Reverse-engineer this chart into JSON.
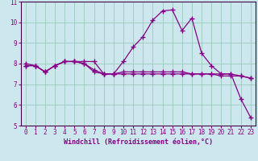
{
  "xlabel": "Windchill (Refroidissement éolien,°C)",
  "bg_color": "#cce8ee",
  "grid_color": "#99ccbb",
  "line_color": "#880088",
  "spine_color": "#440044",
  "x": [
    0,
    1,
    2,
    3,
    4,
    5,
    6,
    7,
    8,
    9,
    10,
    11,
    12,
    13,
    14,
    15,
    16,
    17,
    18,
    19,
    20,
    21,
    22,
    23
  ],
  "line1": [
    7.9,
    7.9,
    7.6,
    7.9,
    8.1,
    8.1,
    8.0,
    7.7,
    7.5,
    7.5,
    8.1,
    8.8,
    9.3,
    10.1,
    10.55,
    10.6,
    9.6,
    10.2,
    8.5,
    7.9,
    7.5,
    7.5,
    7.4,
    7.3
  ],
  "line2": [
    7.9,
    7.9,
    7.6,
    7.9,
    8.1,
    8.1,
    8.0,
    7.6,
    7.5,
    7.5,
    7.6,
    7.6,
    7.6,
    7.6,
    7.6,
    7.6,
    7.6,
    7.5,
    7.5,
    7.5,
    7.4,
    7.4,
    7.4,
    7.3
  ],
  "line3": [
    8.0,
    7.9,
    7.6,
    7.9,
    8.1,
    8.1,
    8.1,
    8.1,
    7.5,
    7.5,
    7.5,
    7.5,
    7.5,
    7.5,
    7.5,
    7.5,
    7.5,
    7.5,
    7.5,
    7.5,
    7.5,
    7.5,
    6.3,
    5.4
  ],
  "ylim": [
    5,
    11
  ],
  "xlim": [
    -0.5,
    23.5
  ],
  "yticks": [
    5,
    6,
    7,
    8,
    9,
    10,
    11
  ],
  "xticks": [
    0,
    1,
    2,
    3,
    4,
    5,
    6,
    7,
    8,
    9,
    10,
    11,
    12,
    13,
    14,
    15,
    16,
    17,
    18,
    19,
    20,
    21,
    22,
    23
  ],
  "marker": "+",
  "marker_size": 4,
  "marker_edge_width": 1.0,
  "line_width": 0.9,
  "xlabel_fontsize": 6.0,
  "tick_fontsize": 5.5
}
